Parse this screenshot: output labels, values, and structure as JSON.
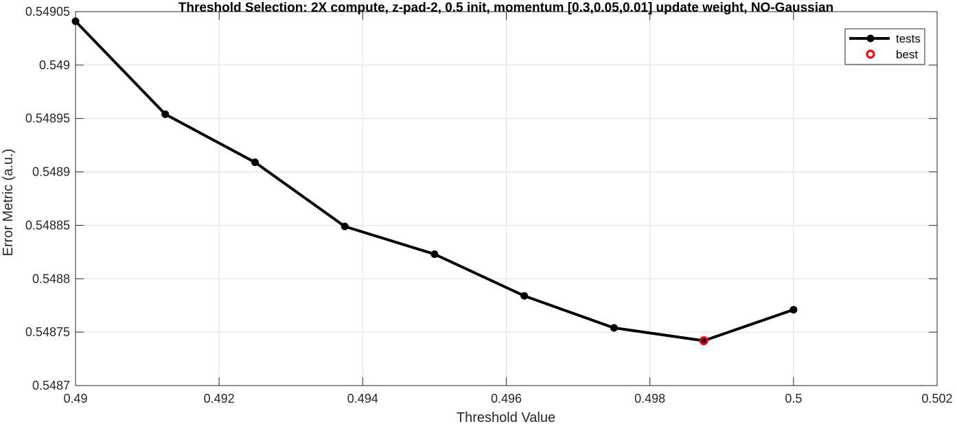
{
  "chart_data": {
    "type": "line",
    "title": "Threshold Selection: 2X compute, z-pad-2, 0.5 init, momentum [0.3,0.05,0.01] update weight, NO-Gaussian",
    "xlabel": "Threshold Value",
    "ylabel": "Error Metric (a.u.)",
    "xlim": [
      0.49,
      0.502
    ],
    "ylim": [
      0.5487,
      0.54905
    ],
    "xticks": [
      "0.49",
      "0.492",
      "0.494",
      "0.496",
      "0.498",
      "0.5",
      "0.502"
    ],
    "yticks": [
      "0.5487",
      "0.54875",
      "0.5488",
      "0.54885",
      "0.5489",
      "0.54895",
      "0.549",
      "0.54905"
    ],
    "grid": true,
    "legend_position": "top-right",
    "series": [
      {
        "name": "tests",
        "color": "#000000",
        "x": [
          0.49,
          0.49125,
          0.4925,
          0.49375,
          0.495,
          0.49625,
          0.4975,
          0.49875,
          0.5
        ],
        "y": [
          0.549041,
          0.548954,
          0.548909,
          0.548849,
          0.548823,
          0.548784,
          0.548754,
          0.548742,
          0.548771
        ]
      },
      {
        "name": "best",
        "color": "#ff0000",
        "marker": "circle-open",
        "x": [
          0.49875
        ],
        "y": [
          0.548742
        ]
      }
    ]
  }
}
